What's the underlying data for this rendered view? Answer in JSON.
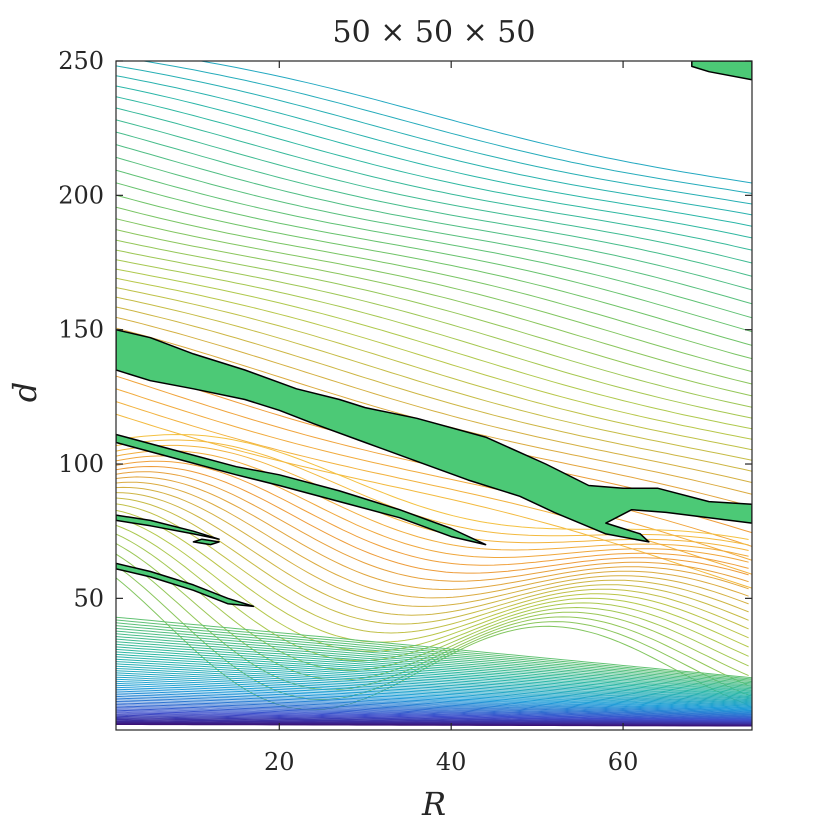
{
  "chart_data": {
    "type": "contour",
    "title": "50 × 50 × 50",
    "xlabel": "R",
    "ylabel": "d",
    "xlim": [
      1,
      75
    ],
    "ylim": [
      1,
      250
    ],
    "xticks": [
      20,
      40,
      60
    ],
    "yticks": [
      50,
      100,
      150,
      200,
      250
    ],
    "grid": false,
    "legend": "none",
    "colormap": [
      "#3b0f70",
      "#3e4ecb",
      "#1f9dd8",
      "#2bb7a5",
      "#6cc46a",
      "#b5c94b",
      "#ef9b3a",
      "#f6d544"
    ],
    "highlight_fill": "#4cc976",
    "highlight_outline": "#000000",
    "contour_levels_approx": 60,
    "highlighted_regions": [
      {
        "name": "upper band",
        "outline": [
          [
            1,
            150
          ],
          [
            5,
            147
          ],
          [
            10,
            141
          ],
          [
            16,
            135
          ],
          [
            22,
            128
          ],
          [
            27,
            124
          ],
          [
            30,
            121
          ],
          [
            36,
            117
          ],
          [
            44,
            110
          ],
          [
            51,
            100
          ],
          [
            56,
            92
          ],
          [
            60,
            91
          ],
          [
            64,
            91
          ],
          [
            70,
            86
          ],
          [
            75,
            85
          ],
          [
            75,
            78
          ],
          [
            70,
            80
          ],
          [
            65,
            82
          ],
          [
            61,
            83
          ],
          [
            58,
            78
          ],
          [
            62,
            74
          ],
          [
            63,
            71
          ],
          [
            58,
            74
          ],
          [
            52,
            82
          ],
          [
            48,
            88
          ],
          [
            42,
            94
          ],
          [
            36,
            101
          ],
          [
            30,
            108
          ],
          [
            24,
            115
          ],
          [
            20,
            120
          ],
          [
            16,
            124
          ],
          [
            10,
            128
          ],
          [
            5,
            131
          ],
          [
            1,
            135
          ]
        ]
      },
      {
        "name": "middle band",
        "outline": [
          [
            1,
            111
          ],
          [
            8,
            105
          ],
          [
            15,
            99
          ],
          [
            20,
            96
          ],
          [
            27,
            90
          ],
          [
            34,
            83
          ],
          [
            40,
            76
          ],
          [
            44,
            70
          ],
          [
            40,
            73
          ],
          [
            34,
            80
          ],
          [
            27,
            86
          ],
          [
            20,
            92
          ],
          [
            15,
            96
          ],
          [
            8,
            102
          ],
          [
            1,
            108
          ]
        ]
      },
      {
        "name": "lower band 1",
        "outline": [
          [
            1,
            81
          ],
          [
            5,
            79
          ],
          [
            10,
            75
          ],
          [
            13,
            72
          ],
          [
            10,
            74
          ],
          [
            5,
            77
          ],
          [
            1,
            79
          ]
        ]
      },
      {
        "name": "lower band 2",
        "outline": [
          [
            1,
            63
          ],
          [
            5,
            60
          ],
          [
            10,
            55
          ],
          [
            14,
            50
          ],
          [
            17,
            47
          ],
          [
            14,
            48
          ],
          [
            10,
            53
          ],
          [
            5,
            58
          ],
          [
            1,
            61
          ]
        ]
      },
      {
        "name": "small island",
        "outline": [
          [
            10,
            71
          ],
          [
            12,
            70
          ],
          [
            13,
            71
          ],
          [
            11,
            72
          ]
        ]
      },
      {
        "name": "top-right corner",
        "outline": [
          [
            68,
            250
          ],
          [
            75,
            250
          ],
          [
            75,
            243
          ],
          [
            70,
            246
          ],
          [
            68,
            248
          ]
        ]
      }
    ]
  }
}
